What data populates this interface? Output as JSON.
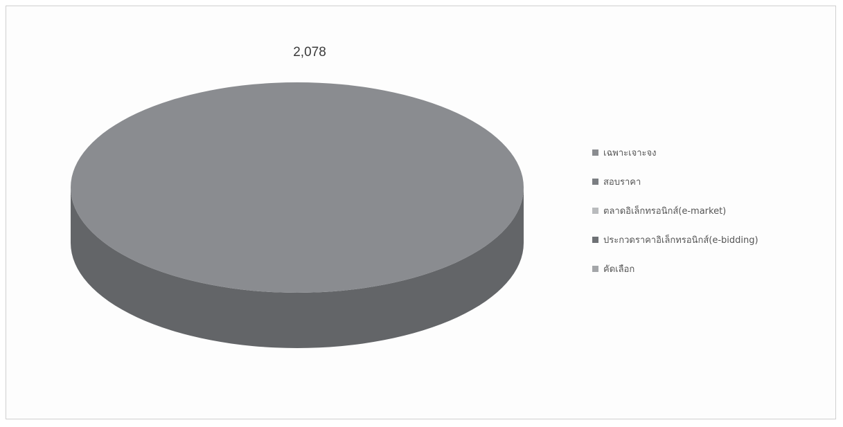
{
  "chart_data": {
    "type": "pie",
    "title": "",
    "categories": [
      "เฉพาะเจาะจง",
      "สอบราคา",
      "ตลาดอิเล็กทรอนิกส์(e-market)",
      "ประกวดราคาอิเล็กทรอนิกส์(e-bidding)",
      "คัดเลือก"
    ],
    "values": [
      2078,
      0,
      0,
      0,
      0
    ],
    "data_labels": [
      "2,078"
    ],
    "colors": [
      "#8a8c90",
      "#7b7e82",
      "#b9bbbd",
      "#6e7175",
      "#a4a6a9"
    ],
    "legend": "right",
    "style": "3d"
  }
}
